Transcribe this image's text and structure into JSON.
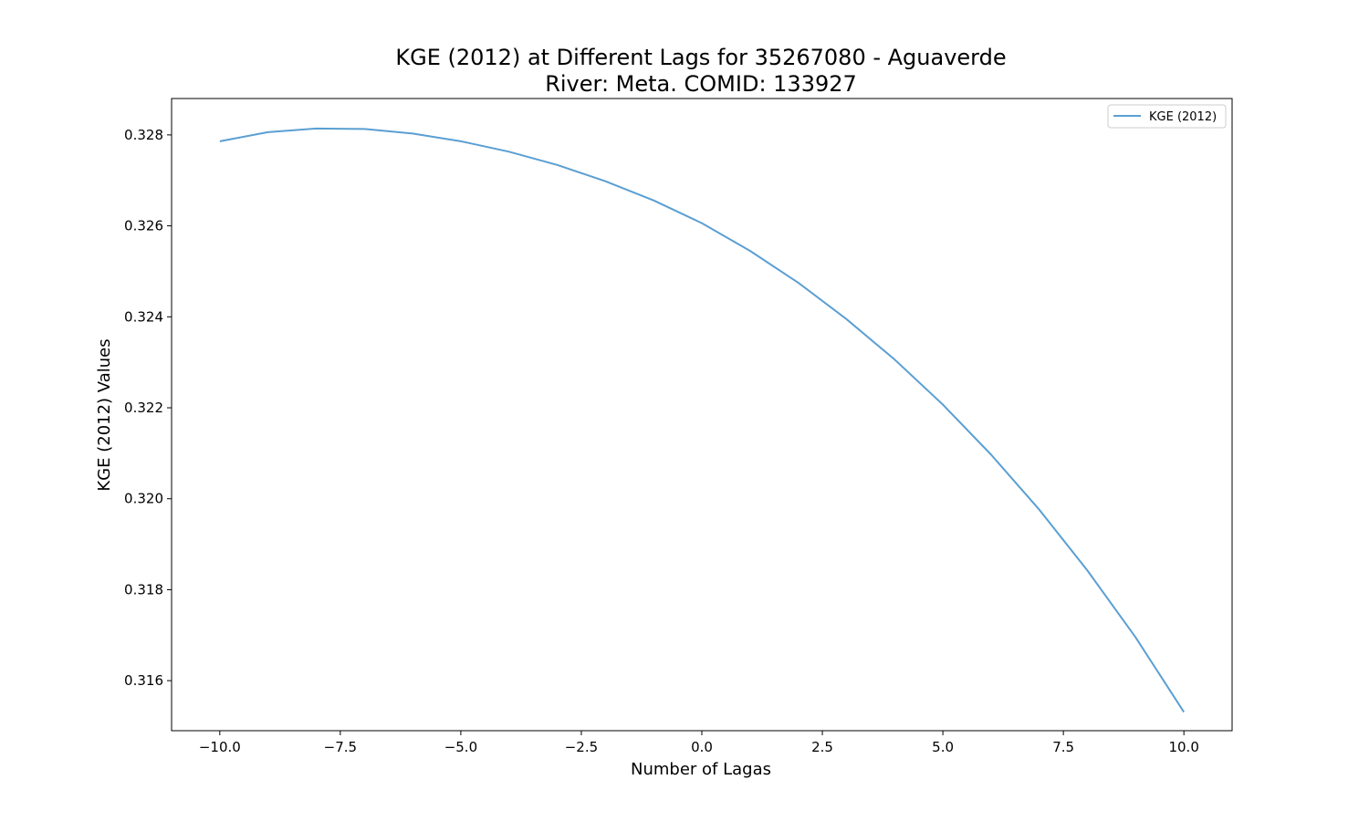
{
  "chart_data": {
    "type": "line",
    "title_line1": "KGE (2012) at Different Lags for 35267080 - Aguaverde",
    "title_line2": "River: Meta. COMID: 133927",
    "xlabel": "Number of Lagas",
    "ylabel": "KGE (2012) Values",
    "xlim": [
      -11,
      11
    ],
    "ylim": [
      0.3149,
      0.3288
    ],
    "x_ticks": [
      -10,
      -7.5,
      -5,
      -2.5,
      0,
      2.5,
      5,
      7.5,
      10
    ],
    "x_tick_labels": [
      "−10.0",
      "−7.5",
      "−5.0",
      "−2.5",
      "0.0",
      "2.5",
      "5.0",
      "7.5",
      "10.0"
    ],
    "y_ticks": [
      0.316,
      0.318,
      0.32,
      0.322,
      0.324,
      0.326,
      0.328
    ],
    "y_tick_labels": [
      "0.316",
      "0.318",
      "0.320",
      "0.322",
      "0.324",
      "0.326",
      "0.328"
    ],
    "grid": false,
    "legend_position": "top-right",
    "series": [
      {
        "name": "KGE (2012)",
        "color": "#5b9fd2",
        "x": [
          -10,
          -9,
          -8,
          -7,
          -6,
          -5,
          -4,
          -3,
          -2,
          -1,
          0,
          1,
          2,
          3,
          4,
          5,
          6,
          7,
          8,
          9,
          10
        ],
        "values": [
          0.32786,
          0.32806,
          0.32814,
          0.32813,
          0.32803,
          0.32786,
          0.32763,
          0.32734,
          0.32698,
          0.32656,
          0.32606,
          0.32545,
          0.32475,
          0.32395,
          0.32306,
          0.32207,
          0.32097,
          0.31976,
          0.31842,
          0.31695,
          0.31531
        ]
      }
    ]
  }
}
